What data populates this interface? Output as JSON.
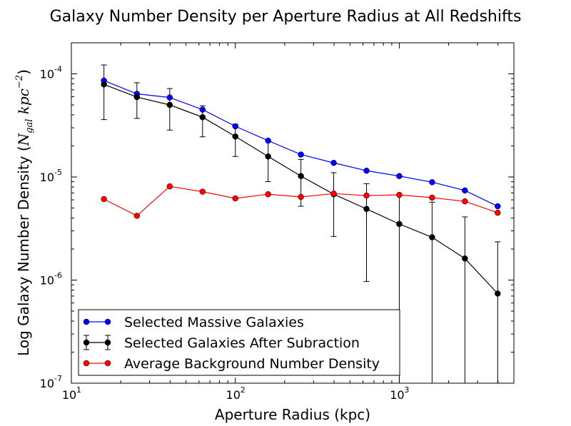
{
  "chart_data": {
    "type": "line",
    "title": "Galaxy Number Density per Aperture Radius at All Redshifts",
    "xlabel": "Aperture Radius (kpc)",
    "ylabel_prefix": "Log Galaxy Number Density (",
    "ylabel_math": "N",
    "ylabel_sub": "gal",
    "ylabel_unit": " kpc",
    "ylabel_sup": "−2",
    "ylabel_suffix": ")",
    "xscale": "log",
    "yscale": "log",
    "xlim": [
      10,
      5000
    ],
    "ylim": [
      1e-07,
      0.0002
    ],
    "grid": false,
    "legend_position": "lower-left",
    "x_ticks": [
      {
        "value": 10,
        "base": "10",
        "exp": "1"
      },
      {
        "value": 100,
        "base": "10",
        "exp": "2"
      },
      {
        "value": 1000,
        "base": "10",
        "exp": "3"
      }
    ],
    "y_ticks": [
      {
        "value": 1e-07,
        "base": "10",
        "exp": "-7"
      },
      {
        "value": 1e-06,
        "base": "10",
        "exp": "-6"
      },
      {
        "value": 1e-05,
        "base": "10",
        "exp": "-5"
      },
      {
        "value": 0.0001,
        "base": "10",
        "exp": "-4"
      }
    ],
    "x": [
      15.8,
      25.1,
      39.8,
      63.1,
      100,
      158.5,
      251.2,
      398.1,
      631,
      1000,
      1584.9,
      2511.9,
      3981.1
    ],
    "series": [
      {
        "name": "Selected Massive Galaxies",
        "color": "#0000ff",
        "values": [
          8.6e-05,
          6.4e-05,
          5.9e-05,
          4.5e-05,
          3.1e-05,
          2.25e-05,
          1.65e-05,
          1.37e-05,
          1.15e-05,
          1.02e-05,
          8.9e-06,
          7.4e-06,
          5.2e-06
        ]
      },
      {
        "name": "Selected Galaxies After Subraction",
        "color": "#000000",
        "values": [
          7.9e-05,
          5.95e-05,
          5e-05,
          3.8e-05,
          2.47e-05,
          1.58e-05,
          1.02e-05,
          6.8e-06,
          4.9e-06,
          3.5e-06,
          2.6e-06,
          1.62e-06,
          7.4e-07
        ],
        "err_upper": [
          0.000122,
          8.2e-05,
          7.2e-05,
          4.9e-05,
          3.25e-05,
          2.25e-05,
          1.48e-05,
          1.1e-05,
          8.6e-06,
          6.7e-06,
          5.7e-06,
          4.1e-06,
          2.35e-06
        ],
        "err_lower": [
          3.6e-05,
          3.7e-05,
          2.85e-05,
          2.45e-05,
          1.58e-05,
          9e-06,
          5.2e-06,
          2.65e-06,
          9.7e-07,
          1e-07,
          1e-07,
          1e-07,
          1e-07
        ]
      },
      {
        "name": "Average Background Number Density",
        "color": "#ff0000",
        "values": [
          6.1e-06,
          4.2e-06,
          8.1e-06,
          7.2e-06,
          6.2e-06,
          6.8e-06,
          6.4e-06,
          6.9e-06,
          6.6e-06,
          6.7e-06,
          6.3e-06,
          5.8e-06,
          4.5e-06
        ]
      }
    ]
  }
}
